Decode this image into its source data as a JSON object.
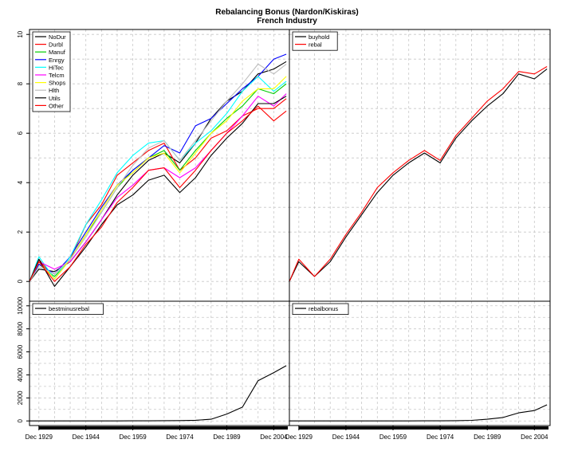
{
  "title": "Rebalancing Bonus (Nardon/Kiskiras)",
  "subtitle": "French Industry",
  "chart_data": [
    {
      "panel": "top-left",
      "type": "line",
      "x": [
        "Dec 1926",
        "Dec 1929",
        "Dec 1934",
        "Dec 1939",
        "Dec 1944",
        "Dec 1949",
        "Dec 1954",
        "Dec 1959",
        "Dec 1964",
        "Dec 1969",
        "Dec 1974",
        "Dec 1979",
        "Dec 1984",
        "Dec 1989",
        "Dec 1994",
        "Dec 1999",
        "Dec 2004",
        "Dec 2008"
      ],
      "ylim": [
        -0.8,
        10.2
      ],
      "yticks": [
        0,
        2,
        4,
        6,
        8,
        10
      ],
      "grid": true,
      "legend": "top-left",
      "series": [
        {
          "name": "NoDur",
          "color": "#000000",
          "values": [
            0,
            0.5,
            0.4,
            0.8,
            1.6,
            2.5,
            3.5,
            4.3,
            4.9,
            5.2,
            4.8,
            5.6,
            6.6,
            7.3,
            7.7,
            8.4,
            8.6,
            8.9
          ]
        },
        {
          "name": "Durbl",
          "color": "#ff0000",
          "values": [
            0,
            0.9,
            0.1,
            0.9,
            2.3,
            3.1,
            4.3,
            4.8,
            5.3,
            5.6,
            4.5,
            5.0,
            5.8,
            6.1,
            6.7,
            7.0,
            7.0,
            7.4
          ]
        },
        {
          "name": "Manuf",
          "color": "#00cd00",
          "values": [
            0,
            0.7,
            0.2,
            0.9,
            1.9,
            2.8,
            3.8,
            4.5,
            5.0,
            5.3,
            4.5,
            5.3,
            6.0,
            6.6,
            7.1,
            7.8,
            7.6,
            8.0
          ]
        },
        {
          "name": "Enrgy",
          "color": "#0000ff",
          "values": [
            0,
            0.7,
            0.3,
            1.0,
            2.0,
            3.0,
            3.9,
            4.5,
            5.0,
            5.5,
            5.2,
            6.3,
            6.6,
            7.2,
            7.8,
            8.3,
            9.0,
            9.2
          ]
        },
        {
          "name": "HiTec",
          "color": "#00ffff",
          "values": [
            0,
            1.0,
            0.1,
            1.0,
            2.3,
            3.3,
            4.4,
            5.1,
            5.6,
            5.7,
            4.9,
            5.6,
            6.1,
            6.8,
            7.7,
            8.3,
            7.7,
            8.1
          ]
        },
        {
          "name": "Telcm",
          "color": "#ff00ff",
          "values": [
            0,
            0.8,
            0.5,
            0.8,
            1.6,
            2.5,
            3.4,
            3.9,
            4.5,
            4.6,
            4.2,
            4.6,
            5.3,
            6.0,
            6.7,
            7.5,
            7.1,
            7.6
          ]
        },
        {
          "name": "Shops",
          "color": "#ffff00",
          "values": [
            0,
            0.8,
            0.1,
            0.9,
            1.9,
            2.9,
            3.9,
            4.4,
            5.0,
            5.2,
            4.4,
            5.2,
            6.0,
            6.5,
            7.3,
            7.8,
            7.8,
            8.3
          ]
        },
        {
          "name": "Hlth",
          "color": "#bebebe",
          "values": [
            0,
            0.6,
            0.3,
            0.9,
            1.8,
            2.8,
            3.8,
            4.7,
            5.4,
            5.7,
            4.9,
            5.7,
            6.5,
            7.3,
            8.0,
            8.8,
            8.4,
            8.8
          ]
        },
        {
          "name": "Utils",
          "color": "#000000",
          "values": [
            0,
            0.9,
            -0.2,
            0.6,
            1.4,
            2.3,
            3.1,
            3.5,
            4.1,
            4.3,
            3.6,
            4.2,
            5.1,
            5.8,
            6.4,
            7.2,
            7.2,
            7.5
          ]
        },
        {
          "name": "Other",
          "color": "#ff0000",
          "values": [
            0,
            0.8,
            0.0,
            0.6,
            1.5,
            2.2,
            3.2,
            3.8,
            4.5,
            4.6,
            3.8,
            4.5,
            5.3,
            6.0,
            6.5,
            7.1,
            6.5,
            6.9
          ]
        }
      ]
    },
    {
      "panel": "top-right",
      "type": "line",
      "x": [
        "Dec 1926",
        "Dec 1929",
        "Dec 1934",
        "Dec 1939",
        "Dec 1944",
        "Dec 1949",
        "Dec 1954",
        "Dec 1959",
        "Dec 1964",
        "Dec 1969",
        "Dec 1974",
        "Dec 1979",
        "Dec 1984",
        "Dec 1989",
        "Dec 1994",
        "Dec 1999",
        "Dec 2004",
        "Dec 2008"
      ],
      "ylim": [
        -0.8,
        10.2
      ],
      "grid": true,
      "legend": "top-left",
      "series": [
        {
          "name": "buyhold",
          "color": "#000000",
          "values": [
            0,
            0.8,
            0.2,
            0.8,
            1.8,
            2.7,
            3.6,
            4.3,
            4.8,
            5.2,
            4.8,
            5.8,
            6.5,
            7.1,
            7.6,
            8.4,
            8.2,
            8.6
          ]
        },
        {
          "name": "rebal",
          "color": "#ff0000",
          "values": [
            0,
            0.9,
            0.2,
            0.9,
            1.9,
            2.8,
            3.8,
            4.4,
            4.9,
            5.3,
            4.9,
            5.9,
            6.6,
            7.3,
            7.8,
            8.5,
            8.4,
            8.7
          ]
        }
      ]
    },
    {
      "panel": "bottom-left",
      "type": "line",
      "x": [
        "Dec 1926",
        "Dec 1929",
        "Dec 1934",
        "Dec 1939",
        "Dec 1944",
        "Dec 1949",
        "Dec 1954",
        "Dec 1959",
        "Dec 1964",
        "Dec 1969",
        "Dec 1974",
        "Dec 1979",
        "Dec 1984",
        "Dec 1989",
        "Dec 1994",
        "Dec 1999",
        "Dec 2004",
        "Dec 2008"
      ],
      "xticks": [
        "Dec 1929",
        "Dec 1944",
        "Dec 1959",
        "Dec 1974",
        "Dec 1989",
        "Dec 2004"
      ],
      "ylim": [
        -400,
        10400
      ],
      "yticks": [
        0,
        2000,
        4000,
        6000,
        8000,
        10000
      ],
      "grid": true,
      "legend": "top-left",
      "series": [
        {
          "name": "bestminusrebal",
          "color": "#000000",
          "values": [
            0,
            0,
            0,
            0,
            0,
            1,
            3,
            6,
            10,
            20,
            30,
            60,
            150,
            600,
            1200,
            3500,
            4200,
            4800
          ]
        }
      ]
    },
    {
      "panel": "bottom-right",
      "type": "line",
      "x": [
        "Dec 1926",
        "Dec 1929",
        "Dec 1934",
        "Dec 1939",
        "Dec 1944",
        "Dec 1949",
        "Dec 1954",
        "Dec 1959",
        "Dec 1964",
        "Dec 1969",
        "Dec 1974",
        "Dec 1979",
        "Dec 1984",
        "Dec 1989",
        "Dec 1994",
        "Dec 1999",
        "Dec 2004",
        "Dec 2008"
      ],
      "xticks": [
        "Dec 1929",
        "Dec 1944",
        "Dec 1959",
        "Dec 1974",
        "Dec 1989",
        "Dec 2004"
      ],
      "ylim": [
        -400,
        10400
      ],
      "grid": true,
      "legend": "top-left",
      "series": [
        {
          "name": "rebalbonus",
          "color": "#000000",
          "values": [
            0,
            0,
            0,
            0,
            0,
            0,
            1,
            2,
            4,
            6,
            10,
            20,
            50,
            150,
            300,
            700,
            900,
            1400
          ]
        }
      ]
    }
  ]
}
